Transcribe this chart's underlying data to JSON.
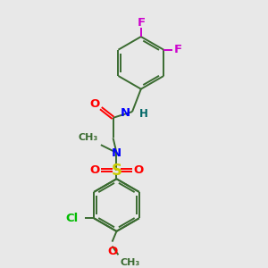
{
  "bg_color": "#e8e8e8",
  "bond_color": "#3a6b30",
  "atom_colors": {
    "F": "#cc00cc",
    "O": "#ff0000",
    "N": "#0000ff",
    "S": "#cccc00",
    "Cl": "#00bb00",
    "H": "#006666",
    "C": "#3a6b30"
  },
  "lw": 1.4,
  "fs": 9.5
}
